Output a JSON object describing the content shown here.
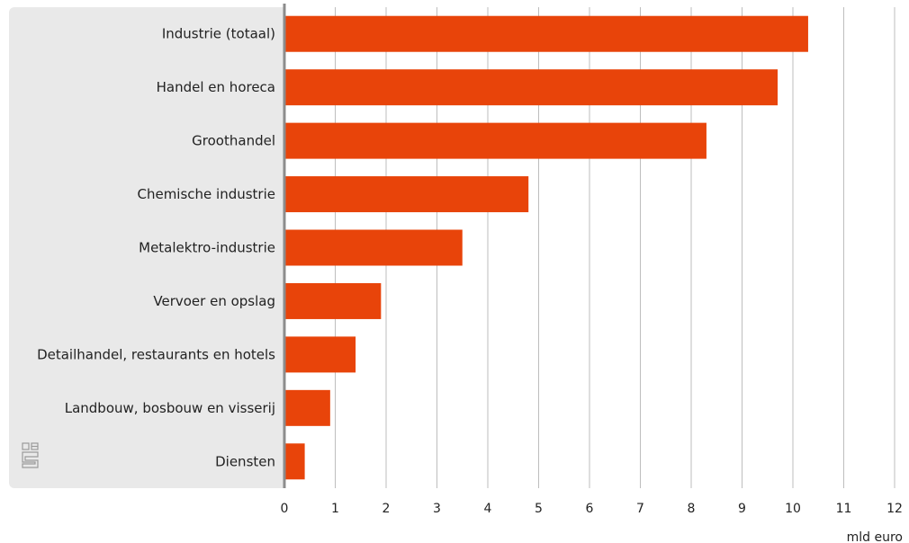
{
  "chart_data": {
    "type": "bar",
    "orientation": "horizontal",
    "categories": [
      "Industrie (totaal)",
      "Handel en horeca",
      "Groothandel",
      "Chemische industrie",
      "Metalektro-industrie",
      "Vervoer en opslag",
      "Detailhandel, restaurants en hotels",
      "Landbouw, bosbouw en visserij",
      "Diensten"
    ],
    "values": [
      10.3,
      9.7,
      8.3,
      4.8,
      3.5,
      1.9,
      1.4,
      0.9,
      0.4
    ],
    "xlim": [
      0,
      12
    ],
    "xticks": [
      "0",
      "1",
      "2",
      "3",
      "4",
      "5",
      "6",
      "7",
      "8",
      "9",
      "10",
      "11",
      "12"
    ],
    "unit_label": "mld euro",
    "grid": "vertical",
    "bar_color": "#e8440a"
  }
}
